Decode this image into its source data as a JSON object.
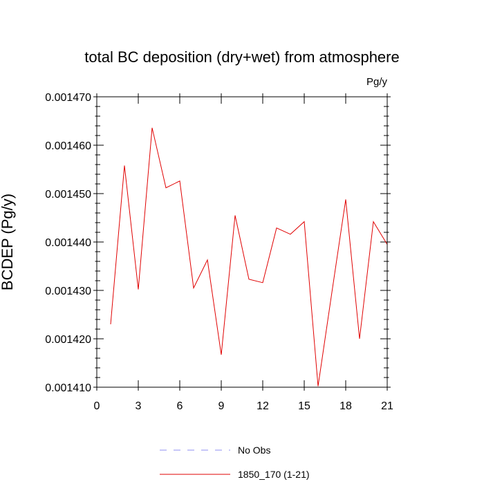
{
  "chart_data": {
    "type": "line",
    "title": "total BC deposition (dry+wet) from atmosphere",
    "units": "Pg/y",
    "ylabel": "BCDEP  (Pg/y)",
    "xlabel": "",
    "xlim": [
      0,
      21
    ],
    "ylim": [
      0.00141,
      0.00147
    ],
    "xticks": [
      0,
      3,
      6,
      9,
      12,
      15,
      18,
      21
    ],
    "xtick_labels": [
      "0",
      "3",
      "6",
      "9",
      "12",
      "15",
      "18",
      "21"
    ],
    "yticks": [
      0.00141,
      0.00142,
      0.00143,
      0.00144,
      0.00145,
      0.00146,
      0.00147
    ],
    "ytick_labels": [
      "0.001410",
      "0.001420",
      "0.001430",
      "0.001440",
      "0.001450",
      "0.001460",
      "0.001470"
    ],
    "grid": false,
    "legend_position": "bottom",
    "series": [
      {
        "name": "No Obs",
        "color": "#8c8cf0",
        "dash": "dashed",
        "x": [],
        "y": []
      },
      {
        "name": "1850_170 (1-21)",
        "color": "#e00000",
        "dash": "solid",
        "x": [
          1,
          2,
          3,
          4,
          5,
          6,
          7,
          8,
          9,
          10,
          11,
          12,
          13,
          14,
          15,
          16,
          17,
          18,
          19,
          20,
          21
        ],
        "y": [
          0.001423,
          0.0014558,
          0.0014302,
          0.0014636,
          0.0014512,
          0.0014526,
          0.0014305,
          0.0014363,
          0.0014167,
          0.0014455,
          0.0014323,
          0.0014316,
          0.0014429,
          0.0014416,
          0.0014442,
          0.0014102,
          0.0014296,
          0.0014488,
          0.00142,
          0.0014442,
          0.0014395
        ]
      }
    ]
  }
}
